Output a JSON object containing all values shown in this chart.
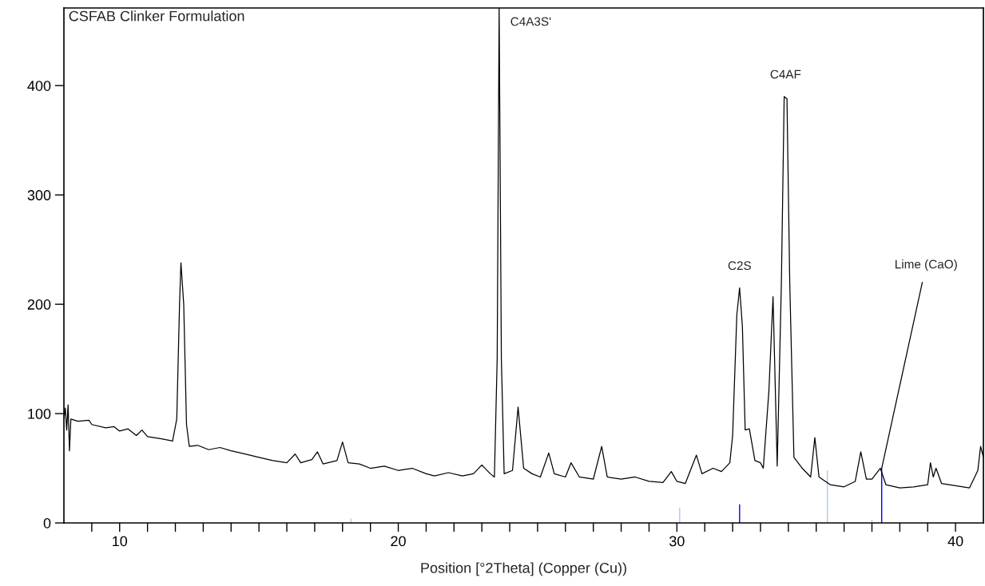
{
  "chart_data": {
    "type": "line",
    "title": "CSFAB Clinker Formulation",
    "xlabel": "Position [°2Theta] (Copper (Cu))",
    "xlim": [
      8,
      41
    ],
    "ylim": [
      0,
      471
    ],
    "xticks": [
      {
        "value": 9,
        "label": null
      },
      10,
      {
        "value": 11,
        "label": null
      },
      {
        "value": 12,
        "label": null
      },
      {
        "value": 13,
        "label": null
      },
      {
        "value": 14,
        "label": null
      },
      {
        "value": 15,
        "label": null
      },
      {
        "value": 16,
        "label": null
      },
      {
        "value": 17,
        "label": null
      },
      {
        "value": 18,
        "label": null
      },
      {
        "value": 19,
        "label": null
      },
      20,
      {
        "value": 21,
        "label": null
      },
      {
        "value": 22,
        "label": null
      },
      {
        "value": 23,
        "label": null
      },
      {
        "value": 24,
        "label": null
      },
      {
        "value": 25,
        "label": null
      },
      {
        "value": 26,
        "label": null
      },
      {
        "value": 27,
        "label": null
      },
      {
        "value": 28,
        "label": null
      },
      {
        "value": 29,
        "label": null
      },
      30,
      {
        "value": 31,
        "label": null
      },
      {
        "value": 32,
        "label": null
      },
      {
        "value": 33,
        "label": null
      },
      {
        "value": 34,
        "label": null
      },
      {
        "value": 35,
        "label": null
      },
      {
        "value": 36,
        "label": null
      },
      {
        "value": 37,
        "label": null
      },
      {
        "value": 38,
        "label": null
      },
      {
        "value": 39,
        "label": null
      },
      40
    ],
    "yticks": [
      0,
      100,
      200,
      300,
      400
    ],
    "grid": false,
    "legend": false,
    "marker": "none",
    "line_style": "solid",
    "series": [
      {
        "color": "#000000",
        "x": [
          8.0,
          8.05,
          8.1,
          8.15,
          8.2,
          8.25,
          8.5,
          8.9,
          9.0,
          9.5,
          9.8,
          10.0,
          10.3,
          10.6,
          10.8,
          11.0,
          11.5,
          11.9,
          12.05,
          12.15,
          12.2,
          12.3,
          12.4,
          12.5,
          12.8,
          13.2,
          13.6,
          14.0,
          14.5,
          15.0,
          15.5,
          16.0,
          16.3,
          16.5,
          16.9,
          17.1,
          17.3,
          17.8,
          18.0,
          18.2,
          18.6,
          19.0,
          19.5,
          20.0,
          20.5,
          21.0,
          21.3,
          21.8,
          22.3,
          22.7,
          23.0,
          23.3,
          23.45,
          23.55,
          23.62,
          23.7,
          23.8,
          24.1,
          24.3,
          24.5,
          24.8,
          25.1,
          25.4,
          25.6,
          26.0,
          26.2,
          26.5,
          27.0,
          27.3,
          27.5,
          28.0,
          28.5,
          29.0,
          29.5,
          29.8,
          30.0,
          30.3,
          30.7,
          30.9,
          31.3,
          31.6,
          31.9,
          32.0,
          32.15,
          32.25,
          32.35,
          32.45,
          32.6,
          32.8,
          33.0,
          33.1,
          33.3,
          33.45,
          33.6,
          33.75,
          33.85,
          33.95,
          34.05,
          34.2,
          34.5,
          34.8,
          34.95,
          35.1,
          35.5,
          36.0,
          36.4,
          36.6,
          36.8,
          37.0,
          37.3,
          37.5,
          38.0,
          38.5,
          39.0,
          39.1,
          39.2,
          39.3,
          39.5,
          40.0,
          40.5,
          40.8,
          40.9,
          41.0
        ],
        "values": [
          95,
          105,
          85,
          108,
          66,
          95,
          93,
          94,
          90,
          87,
          88,
          84,
          86,
          80,
          85,
          79,
          77,
          75,
          95,
          200,
          238,
          200,
          90,
          70,
          71,
          67,
          69,
          66,
          63,
          60,
          57,
          55,
          63,
          55,
          58,
          65,
          54,
          57,
          74,
          55,
          54,
          50,
          52,
          48,
          50,
          45,
          43,
          46,
          43,
          45,
          53,
          45,
          42,
          150,
          471,
          150,
          45,
          48,
          106,
          50,
          45,
          42,
          64,
          45,
          42,
          55,
          42,
          40,
          70,
          42,
          40,
          42,
          38,
          37,
          47,
          38,
          36,
          62,
          45,
          50,
          47,
          55,
          80,
          190,
          215,
          180,
          85,
          86,
          57,
          55,
          50,
          120,
          207,
          52,
          220,
          390,
          388,
          220,
          60,
          50,
          42,
          78,
          42,
          35,
          33,
          38,
          65,
          40,
          40,
          50,
          35,
          32,
          33,
          35,
          55,
          42,
          50,
          36,
          34,
          32,
          48,
          70,
          60
        ]
      },
      {
        "type": "bar",
        "x": [
          18.3,
          30.1,
          35.4,
          37.0
        ],
        "values": [
          4,
          14,
          48,
          3
        ],
        "color": "#a6caf0"
      },
      {
        "type": "bar",
        "x": [
          32.25,
          37.35
        ],
        "values": [
          17,
          50
        ],
        "color": "#0000ff"
      }
    ],
    "annotations": [
      {
        "text": "C4A3S'",
        "x": 23.62,
        "y": 471
      },
      {
        "text": "C4AF",
        "x": 33.9,
        "y": 390
      },
      {
        "text": "C2S",
        "x": 32.25,
        "y": 215
      },
      {
        "text": "Lime (CaO)",
        "x": 37.35,
        "y": 50
      }
    ]
  }
}
